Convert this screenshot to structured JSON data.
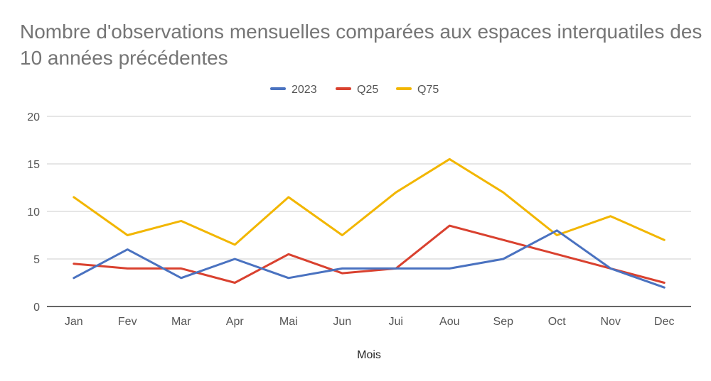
{
  "chart_data": {
    "type": "line",
    "title": "Nombre d'observations mensuelles comparées aux espaces interquatiles des 10 années précédentes",
    "xlabel": "Mois",
    "ylabel": "",
    "categories": [
      "Jan",
      "Fev",
      "Mar",
      "Apr",
      "Mai",
      "Jun",
      "Jui",
      "Aou",
      "Sep",
      "Oct",
      "Nov",
      "Dec"
    ],
    "ylim": [
      0,
      20
    ],
    "yticks": [
      "0",
      "5",
      "10",
      "15",
      "20"
    ],
    "grid": true,
    "legend": "top-center",
    "series": [
      {
        "name": "2023",
        "color": "#4a72c0",
        "values": [
          3,
          6,
          3,
          5,
          3,
          4,
          4,
          4,
          5,
          8,
          4,
          2
        ]
      },
      {
        "name": "Q25",
        "color": "#d9412f",
        "values": [
          4.5,
          4,
          4,
          2.5,
          5.5,
          3.5,
          4,
          8.5,
          7,
          5.5,
          4,
          2.5
        ]
      },
      {
        "name": "Q75",
        "color": "#f2b600",
        "values": [
          11.5,
          7.5,
          9,
          6.5,
          11.5,
          7.5,
          12,
          15.5,
          12,
          7.5,
          9.5,
          7
        ]
      }
    ]
  }
}
